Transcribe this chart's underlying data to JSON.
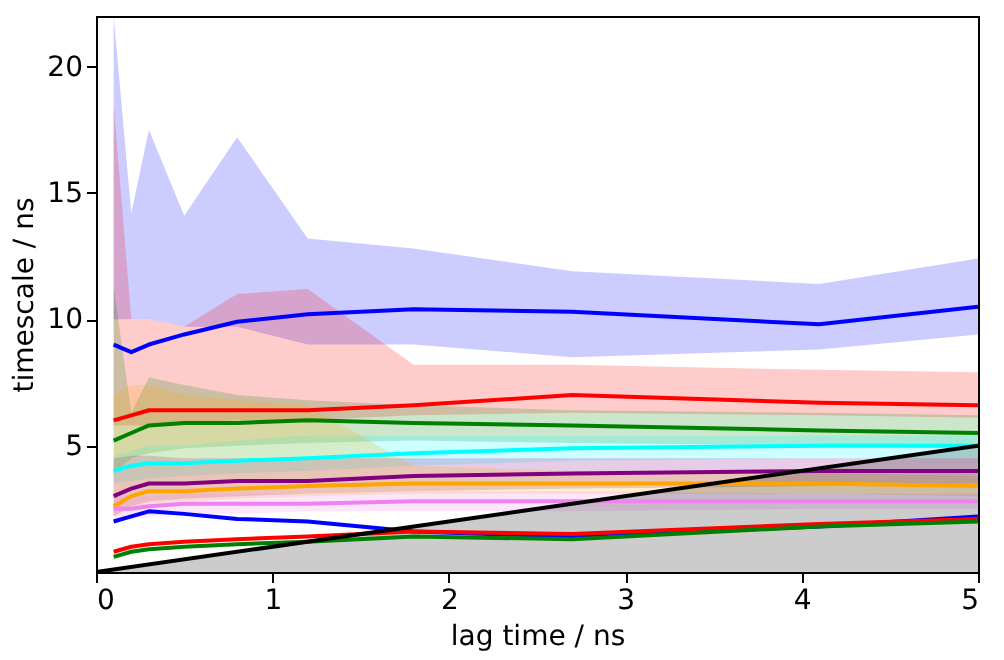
{
  "chart_data": {
    "type": "line",
    "xlabel": "lag time / ns",
    "ylabel": "timescale / ns",
    "x": [
      0.1,
      0.2,
      0.3,
      0.5,
      0.8,
      1.2,
      1.8,
      2.7,
      4.1,
      5.0
    ],
    "xlim": [
      0,
      5
    ],
    "ylim": [
      0,
      22
    ],
    "xticks": [
      0,
      1,
      2,
      3,
      4,
      5
    ],
    "yticks": [
      5,
      10,
      15,
      20
    ],
    "grid": false,
    "line_style": "solid",
    "marker": "none",
    "series": [
      {
        "color": "#0000ff",
        "values": [
          9.0,
          8.7,
          9.0,
          9.4,
          9.9,
          10.2,
          10.4,
          10.3,
          9.8,
          10.5
        ],
        "lower": [
          10.0,
          10.0,
          10.0,
          9.7,
          9.7,
          9.0,
          9.0,
          8.5,
          8.8,
          9.4
        ],
        "upper": [
          22,
          14.2,
          17.5,
          14.1,
          17.2,
          13.2,
          12.8,
          11.9,
          11.4,
          12.4
        ]
      },
      {
        "color": "#ff0000",
        "values": [
          6.0,
          6.2,
          6.4,
          6.4,
          6.4,
          6.4,
          6.6,
          7.0,
          6.7,
          6.6
        ],
        "lower": [
          5.8,
          5.8,
          5.8,
          5.9,
          6.0,
          6.0,
          6.2,
          6.3,
          6.2,
          6.1
        ],
        "upper": [
          18.5,
          10.0,
          10.0,
          9.7,
          11.0,
          11.2,
          8.2,
          8.2,
          8.0,
          7.9
        ]
      },
      {
        "color": "#008000",
        "values": [
          5.2,
          5.5,
          5.8,
          5.9,
          5.9,
          6.0,
          5.9,
          5.8,
          5.6,
          5.5
        ],
        "lower": [
          3.9,
          4.5,
          4.7,
          4.9,
          5.0,
          5.1,
          5.2,
          5.1,
          5.0,
          4.9
        ],
        "upper": [
          11.3,
          6.3,
          7.7,
          7.4,
          7.0,
          6.8,
          6.6,
          6.4,
          6.3,
          6.2
        ]
      },
      {
        "color": "#00ffff",
        "values": [
          4.0,
          4.2,
          4.3,
          4.3,
          4.4,
          4.5,
          4.7,
          4.9,
          5.0,
          5.0
        ],
        "lower": [
          3.5,
          3.6,
          3.7,
          3.8,
          3.9,
          4.0,
          4.2,
          4.4,
          4.5,
          4.5
        ],
        "upper": [
          4.6,
          4.8,
          5.0,
          5.0,
          5.2,
          5.4,
          5.4,
          5.4,
          5.4,
          5.4
        ]
      },
      {
        "color": "#800080",
        "values": [
          3.0,
          3.3,
          3.5,
          3.5,
          3.6,
          3.6,
          3.8,
          3.9,
          4.0,
          4.0
        ],
        "lower": [
          2.2,
          2.6,
          2.8,
          2.9,
          3.0,
          3.1,
          3.2,
          3.3,
          3.4,
          3.5
        ],
        "upper": [
          4.5,
          4.6,
          4.6,
          4.5,
          4.5,
          4.5,
          4.5,
          4.5,
          4.5,
          4.5
        ]
      },
      {
        "color": "#ffa500",
        "values": [
          2.6,
          3.0,
          3.2,
          3.2,
          3.3,
          3.4,
          3.5,
          3.5,
          3.5,
          3.4
        ],
        "lower": [
          2.2,
          2.5,
          2.7,
          2.8,
          2.9,
          3.0,
          3.1,
          3.1,
          3.1,
          3.0
        ],
        "upper": [
          7.0,
          7.4,
          7.4,
          7.0,
          6.8,
          6.6,
          4.2,
          4.0,
          3.9,
          3.8
        ]
      },
      {
        "color": "#ee82ee",
        "values": [
          2.5,
          2.5,
          2.6,
          2.7,
          2.7,
          2.7,
          2.8,
          2.8,
          2.8,
          2.8
        ],
        "lower": [
          2.0,
          2.1,
          2.2,
          2.3,
          2.3,
          2.4,
          2.4,
          2.4,
          2.5,
          2.5
        ],
        "upper": [
          3.0,
          3.0,
          3.0,
          3.1,
          3.1,
          3.1,
          3.2,
          3.2,
          3.1,
          3.1
        ]
      },
      {
        "color": "#0000ff",
        "values": [
          2.0,
          2.2,
          2.4,
          2.3,
          2.1,
          2.0,
          1.6,
          1.4,
          1.8,
          2.2
        ]
      },
      {
        "color": "#ff0000",
        "values": [
          0.8,
          1.0,
          1.1,
          1.2,
          1.3,
          1.4,
          1.6,
          1.5,
          1.9,
          2.1
        ]
      },
      {
        "color": "#008000",
        "values": [
          0.6,
          0.8,
          0.9,
          1.0,
          1.1,
          1.2,
          1.4,
          1.3,
          1.8,
          2.0
        ]
      },
      {
        "color": "#000000",
        "x": [
          0,
          5
        ],
        "values": [
          0,
          5
        ],
        "lower": [
          0,
          0
        ],
        "upper": [
          0,
          5
        ]
      }
    ]
  }
}
